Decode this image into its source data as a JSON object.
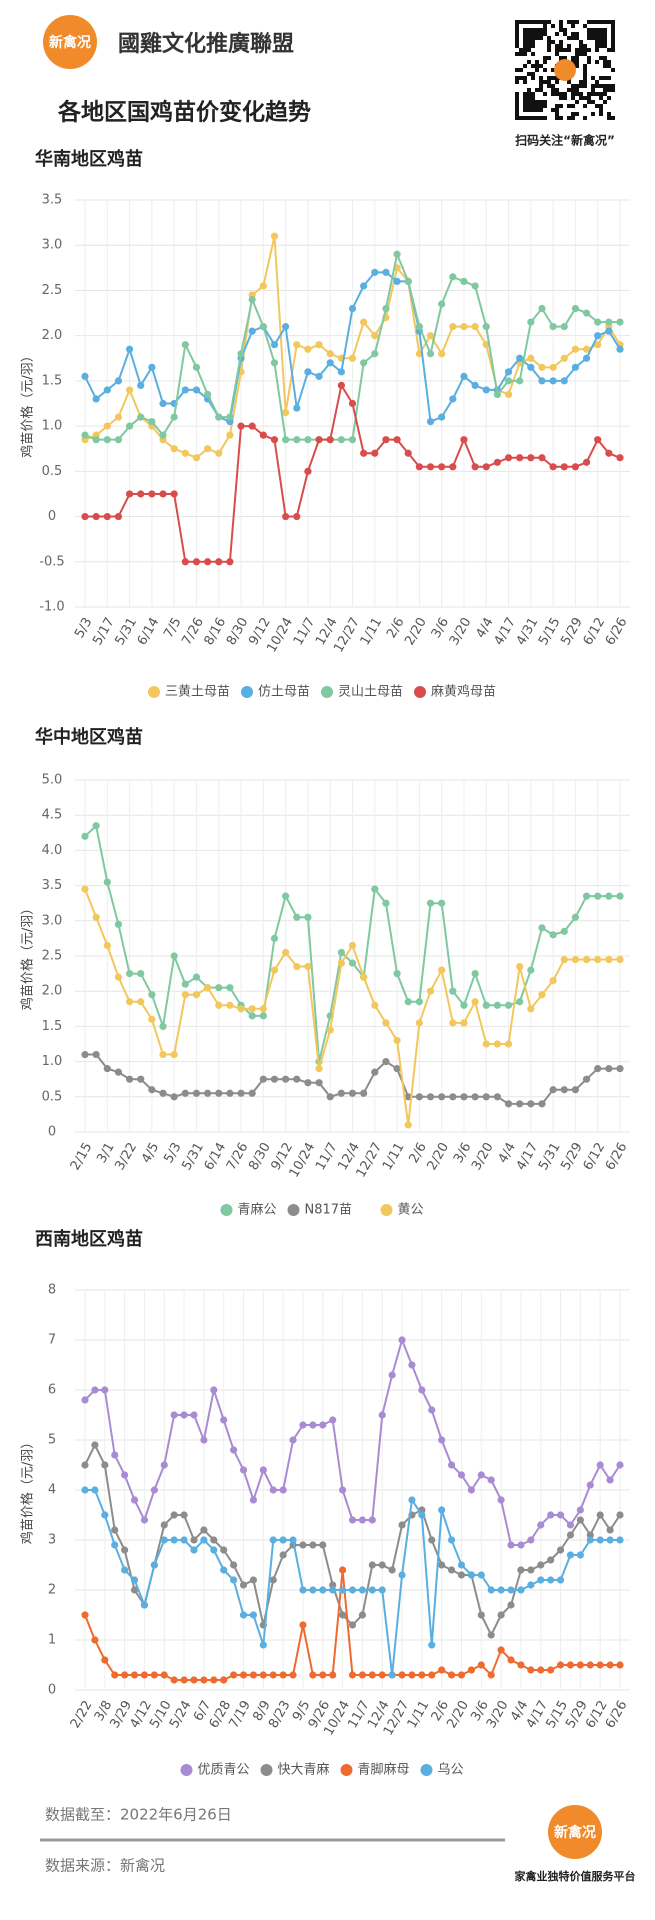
{
  "header": {
    "logo": "新禽况",
    "brand": "國雞文化推廣聯盟",
    "title": "各地区国鸡苗价变化趋势",
    "qr_caption": "扫码关注“新禽况”"
  },
  "chart_data": [
    {
      "type": "line",
      "title": "华南地区鸡苗",
      "y_label": "鸡苗价格（元/羽）",
      "legend": "bottom",
      "grid": true,
      "ylim": [
        -1,
        3.5
      ],
      "yticks": [
        {
          "value": -1,
          "label": "-1.0"
        },
        -0.5,
        0,
        0.5,
        {
          "value": 1,
          "label": "1.0"
        },
        1.5,
        {
          "value": 2,
          "label": "2.0"
        },
        2.5,
        {
          "value": 3,
          "label": "3.0"
        },
        3.5
      ],
      "categories": [
        "5/3",
        null,
        "5/17",
        null,
        "5/31",
        null,
        "6/14",
        null,
        "7/5",
        null,
        "7/26",
        null,
        "8/16",
        null,
        "8/30",
        null,
        "9/12",
        null,
        "10/24",
        null,
        "11/7",
        null,
        "12/4",
        null,
        "12/27",
        null,
        "1/11",
        null,
        "2/6",
        null,
        "2/20",
        null,
        "3/6",
        null,
        "3/20",
        null,
        "4/4",
        null,
        "4/17",
        null,
        "4/31",
        null,
        "5/15",
        null,
        "5/29",
        null,
        "6/12",
        null,
        "6/26"
      ],
      "series": [
        {
          "name": "三黄土母苗",
          "color": "#f2c75c",
          "values": [
            0.85,
            0.9,
            1.0,
            1.1,
            1.4,
            1.1,
            1.0,
            0.85,
            0.75,
            0.7,
            0.65,
            0.75,
            0.7,
            0.9,
            1.6,
            2.45,
            2.55,
            3.1,
            1.15,
            1.9,
            1.85,
            1.9,
            1.8,
            1.75,
            1.75,
            2.15,
            2.0,
            2.2,
            2.75,
            2.6,
            1.8,
            2.0,
            1.8,
            2.1,
            2.1,
            2.1,
            1.9,
            1.4,
            1.35,
            1.7,
            1.75,
            1.65,
            1.65,
            1.75,
            1.85,
            1.85,
            1.9,
            2.1,
            1.9
          ]
        },
        {
          "name": "仿土母苗",
          "color": "#5aaee0",
          "values": [
            1.55,
            1.3,
            1.4,
            1.5,
            1.85,
            1.45,
            1.65,
            1.25,
            1.25,
            1.4,
            1.4,
            1.3,
            1.1,
            1.05,
            1.75,
            2.05,
            2.1,
            1.9,
            2.1,
            1.2,
            1.6,
            1.55,
            1.7,
            1.6,
            2.3,
            2.55,
            2.7,
            2.7,
            2.6,
            2.6,
            2.05,
            1.05,
            1.1,
            1.3,
            1.55,
            1.45,
            1.4,
            1.4,
            1.6,
            1.75,
            1.65,
            1.5,
            1.5,
            1.5,
            1.65,
            1.75,
            2.0,
            2.05,
            1.85
          ]
        },
        {
          "name": "灵山土母苗",
          "color": "#7fc8a0",
          "values": [
            0.9,
            0.85,
            0.85,
            0.85,
            1.0,
            1.1,
            1.05,
            0.9,
            1.1,
            1.9,
            1.65,
            1.35,
            1.1,
            1.1,
            1.8,
            2.4,
            2.1,
            1.7,
            0.85,
            0.85,
            0.85,
            0.85,
            0.85,
            0.85,
            0.85,
            1.7,
            1.8,
            2.3,
            2.9,
            2.6,
            2.1,
            1.8,
            2.35,
            2.65,
            2.6,
            2.55,
            2.1,
            1.35,
            1.5,
            1.5,
            2.15,
            2.3,
            2.1,
            2.1,
            2.3,
            2.25,
            2.15,
            2.15,
            2.15
          ]
        },
        {
          "name": "麻黄鸡母苗",
          "color": "#d94c4c",
          "values": [
            0,
            0,
            0,
            0,
            0.25,
            0.25,
            0.25,
            0.25,
            0.25,
            -0.5,
            -0.5,
            -0.5,
            -0.5,
            -0.5,
            1.0,
            1.0,
            0.9,
            0.85,
            0,
            0,
            0.5,
            0.85,
            0.85,
            1.45,
            1.25,
            0.7,
            0.7,
            0.85,
            0.85,
            0.7,
            0.55,
            0.55,
            0.55,
            0.55,
            0.85,
            0.55,
            0.55,
            0.6,
            0.65,
            0.65,
            0.65,
            0.65,
            0.55,
            0.55,
            0.55,
            0.6,
            0.85,
            0.7,
            0.65
          ]
        }
      ]
    },
    {
      "type": "line",
      "title": "华中地区鸡苗",
      "y_label": "鸡苗价格（元/羽）",
      "legend": "bottom",
      "grid": true,
      "ylim": [
        0,
        5
      ],
      "yticks": [
        0,
        0.5,
        {
          "value": 1,
          "label": "1.0"
        },
        1.5,
        {
          "value": 2,
          "label": "2.0"
        },
        2.5,
        {
          "value": 3,
          "label": "3.0"
        },
        3.5,
        {
          "value": 4,
          "label": "4.0"
        },
        4.5,
        {
          "value": 5,
          "label": "5.0"
        }
      ],
      "categories": [
        "2/15",
        null,
        "3/1",
        null,
        "3/22",
        null,
        "4/5",
        null,
        "5/3",
        null,
        "5/31",
        null,
        "6/14",
        null,
        "7/26",
        null,
        "8/30",
        null,
        "9/12",
        null,
        "10/24",
        null,
        "11/7",
        null,
        "12/4",
        null,
        "12/27",
        null,
        "1/11",
        null,
        "2/6",
        null,
        "2/20",
        null,
        "3/6",
        null,
        "3/20",
        null,
        "4/4",
        null,
        "4/17",
        null,
        "5/31",
        null,
        "5/29",
        null,
        "6/12",
        null,
        "6/26"
      ],
      "series": [
        {
          "name": "青麻公",
          "color": "#7fc8a0",
          "values": [
            4.2,
            4.35,
            3.55,
            2.95,
            2.25,
            2.25,
            1.95,
            1.5,
            2.5,
            2.1,
            2.2,
            2.05,
            2.05,
            2.05,
            1.8,
            1.65,
            1.65,
            2.75,
            3.35,
            3.05,
            3.05,
            1.0,
            1.65,
            2.55,
            2.4,
            2.2,
            3.45,
            3.25,
            2.25,
            1.85,
            1.85,
            3.25,
            3.25,
            2.0,
            1.8,
            2.25,
            1.8,
            1.8,
            1.8,
            1.85,
            2.3,
            2.9,
            2.8,
            2.85,
            3.05,
            3.35,
            3.35,
            3.35,
            3.35
          ]
        },
        {
          "name": "N817苗",
          "color": "#8c8c8c",
          "values": [
            1.1,
            1.1,
            0.9,
            0.85,
            0.75,
            0.75,
            0.6,
            0.55,
            0.5,
            0.55,
            0.55,
            0.55,
            0.55,
            0.55,
            0.55,
            0.55,
            0.75,
            0.75,
            0.75,
            0.75,
            0.7,
            0.7,
            0.5,
            0.55,
            0.55,
            0.55,
            0.85,
            1.0,
            0.9,
            0.5,
            0.5,
            0.5,
            0.5,
            0.5,
            0.5,
            0.5,
            0.5,
            0.5,
            0.4,
            0.4,
            0.4,
            0.4,
            0.6,
            0.6,
            0.6,
            0.75,
            0.9,
            0.9,
            0.9
          ]
        },
        {
          "name": "黄公",
          "color": "#f2c75c",
          "values": [
            3.45,
            3.05,
            2.65,
            2.2,
            1.85,
            1.85,
            1.6,
            1.1,
            1.1,
            1.95,
            1.95,
            2.05,
            1.8,
            1.8,
            1.75,
            1.75,
            1.75,
            2.3,
            2.55,
            2.35,
            2.35,
            0.9,
            1.45,
            2.4,
            2.65,
            2.2,
            1.8,
            1.55,
            1.3,
            0.1,
            1.55,
            2.0,
            2.3,
            1.55,
            1.55,
            1.85,
            1.25,
            1.25,
            1.25,
            2.35,
            1.75,
            1.95,
            2.15,
            2.45,
            2.45,
            2.45,
            2.45,
            2.45,
            2.45
          ]
        }
      ]
    },
    {
      "type": "line",
      "title": "西南地区鸡苗",
      "y_label": "鸡苗价格（元/羽）",
      "legend": "bottom",
      "grid": true,
      "ylim": [
        0,
        8
      ],
      "yticks": [
        0,
        1,
        2,
        3,
        4,
        5,
        6,
        7,
        8
      ],
      "categories": [
        "2/22",
        null,
        "3/8",
        null,
        "3/29",
        null,
        "4/12",
        null,
        "5/10",
        null,
        "5/24",
        null,
        "6/7",
        null,
        "6/28",
        null,
        "7/19",
        null,
        "8/9",
        null,
        "8/23",
        null,
        "9/5",
        null,
        "9/26",
        null,
        "10/24",
        null,
        "11/7",
        null,
        "12/4",
        null,
        "12/27",
        null,
        "1/11",
        null,
        "2/6",
        null,
        "2/20",
        null,
        "3/6",
        null,
        "3/20",
        null,
        "4/4",
        null,
        "4/17",
        null,
        "5/15",
        null,
        "5/29",
        null,
        "6/12",
        null,
        "6/26"
      ],
      "series": [
        {
          "name": "优质青公",
          "color": "#a98bd3",
          "values": [
            5.8,
            6.0,
            6.0,
            4.7,
            4.3,
            3.8,
            3.4,
            4.0,
            4.5,
            5.5,
            5.5,
            5.5,
            5.0,
            6.0,
            5.4,
            4.8,
            4.4,
            3.8,
            4.4,
            4.0,
            4.0,
            5.0,
            5.3,
            5.3,
            5.3,
            5.4,
            4.0,
            3.4,
            3.4,
            3.4,
            5.5,
            6.3,
            7.0,
            6.5,
            6.0,
            5.6,
            5.0,
            4.5,
            4.3,
            4.0,
            4.3,
            4.2,
            3.8,
            2.9,
            2.9,
            3.0,
            3.3,
            3.5,
            3.5,
            3.3,
            3.6,
            4.1,
            4.5,
            4.2,
            4.5
          ]
        },
        {
          "name": "快大青麻",
          "color": "#8c8c8c",
          "values": [
            4.5,
            4.9,
            4.5,
            3.2,
            2.8,
            2.0,
            1.7,
            2.5,
            3.3,
            3.5,
            3.5,
            3.0,
            3.2,
            3.0,
            2.8,
            2.5,
            2.1,
            2.2,
            1.3,
            2.2,
            2.7,
            2.9,
            2.9,
            2.9,
            2.9,
            2.1,
            1.5,
            1.3,
            1.5,
            2.5,
            2.5,
            2.4,
            3.3,
            3.5,
            3.6,
            3.0,
            2.5,
            2.4,
            2.3,
            2.3,
            1.5,
            1.1,
            1.5,
            1.7,
            2.4,
            2.4,
            2.5,
            2.6,
            2.8,
            3.1,
            3.4,
            3.1,
            3.5,
            3.2,
            3.5
          ]
        },
        {
          "name": "青脚麻母",
          "color": "#ee6a2f",
          "values": [
            1.5,
            1.0,
            0.6,
            0.3,
            0.3,
            0.3,
            0.3,
            0.3,
            0.3,
            0.2,
            0.2,
            0.2,
            0.2,
            0.2,
            0.2,
            0.3,
            0.3,
            0.3,
            0.3,
            0.3,
            0.3,
            0.3,
            1.3,
            0.3,
            0.3,
            0.3,
            2.4,
            0.3,
            0.3,
            0.3,
            0.3,
            0.3,
            0.3,
            0.3,
            0.3,
            0.3,
            0.4,
            0.3,
            0.3,
            0.4,
            0.5,
            0.3,
            0.8,
            0.6,
            0.5,
            0.4,
            0.4,
            0.4,
            0.5,
            0.5,
            0.5,
            0.5,
            0.5,
            0.5,
            0.5
          ]
        },
        {
          "name": "乌公",
          "color": "#5aaee0",
          "values": [
            4.0,
            4.0,
            3.5,
            2.9,
            2.4,
            2.2,
            1.7,
            2.5,
            3.0,
            3.0,
            3.0,
            2.8,
            3.0,
            2.8,
            2.4,
            2.2,
            1.5,
            1.5,
            0.9,
            3.0,
            3.0,
            3.0,
            2.0,
            2.0,
            2.0,
            2.0,
            2.0,
            2.0,
            2.0,
            2.0,
            2.0,
            0.3,
            2.3,
            3.8,
            3.5,
            0.9,
            3.6,
            3.0,
            2.5,
            2.3,
            2.3,
            2.0,
            2.0,
            2.0,
            2.0,
            2.1,
            2.2,
            2.2,
            2.2,
            2.7,
            2.7,
            3.0,
            3.0,
            3.0,
            3.0
          ]
        }
      ]
    }
  ],
  "footer": {
    "date": "数据截至：2022年6月26日",
    "source": "数据来源：新禽况",
    "logo": "新禽况",
    "slogan": "家禽业独特价值服务平台"
  }
}
